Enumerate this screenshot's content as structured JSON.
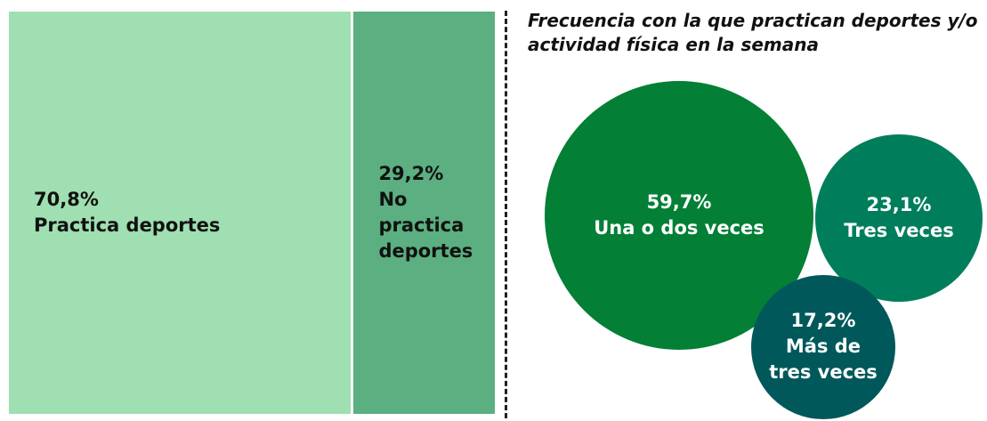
{
  "chart_data": [
    {
      "type": "treemap",
      "categories": [
        "Practica deportes",
        "No practica deportes"
      ],
      "values": [
        70.8,
        29.2
      ],
      "value_labels": [
        "70,8%",
        "29,2%"
      ],
      "colors": [
        "#9fdfb1",
        "#5baf80"
      ]
    },
    {
      "type": "bubble",
      "title": "Frecuencia con la que practican deportes y/o actividad física en la semana",
      "categories": [
        "Una o dos veces",
        "Tres veces",
        "Más de tres veces"
      ],
      "values": [
        59.7,
        23.1,
        17.2
      ],
      "value_labels": [
        "59,7%",
        "23,1%",
        "17,2%"
      ],
      "colors": [
        "#037f36",
        "#007e5c",
        "#01585a"
      ]
    }
  ]
}
